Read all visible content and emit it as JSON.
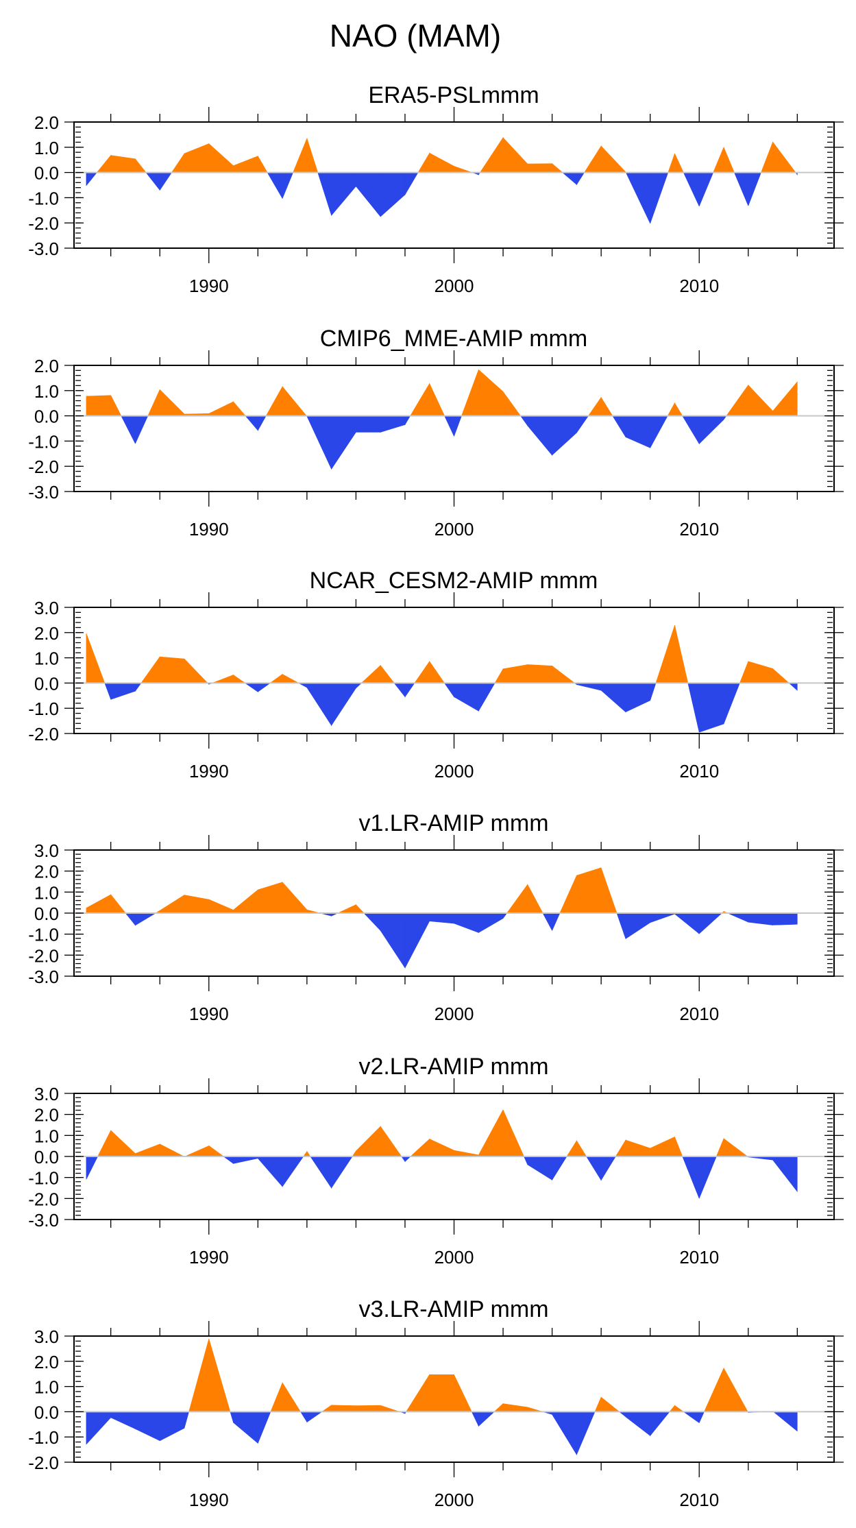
{
  "figure": {
    "title": "NAO (MAM)"
  },
  "colors": {
    "positive": "#ff8000",
    "negative": "#2a45e8",
    "zero_line": "#c8c8c8",
    "axis": "#000000"
  },
  "chart_data": [
    {
      "type": "area",
      "title": "ERA5-PSLmmm",
      "xlabel": "",
      "ylabel": "",
      "xlim": [
        1984.5,
        2015.5
      ],
      "ylim": [
        -3.0,
        2.0
      ],
      "yticks": [
        "2.0",
        "1.0",
        "0.0",
        "-1.0",
        "-2.0",
        "-3.0"
      ],
      "ytick_values": [
        2.0,
        1.0,
        0.0,
        -1.0,
        -2.0,
        -3.0
      ],
      "xticks": [
        "1990",
        "2000",
        "2010"
      ],
      "xtick_values": [
        1990,
        2000,
        2010
      ],
      "fill_above_zero": "positive",
      "fill_below_zero": "negative",
      "x": [
        1985,
        1986,
        1987,
        1988,
        1989,
        1990,
        1991,
        1992,
        1993,
        1994,
        1995,
        1996,
        1997,
        1998,
        1999,
        2000,
        2001,
        2002,
        2003,
        2004,
        2005,
        2006,
        2007,
        2008,
        2009,
        2010,
        2011,
        2012,
        2013,
        2014
      ],
      "values": [
        -0.52,
        0.68,
        0.54,
        -0.7,
        0.75,
        1.14,
        0.27,
        0.65,
        -1.03,
        1.35,
        -1.7,
        -0.55,
        -1.75,
        -0.88,
        0.77,
        0.25,
        -0.09,
        1.38,
        0.34,
        0.35,
        -0.48,
        1.05,
        0.02,
        -2.02,
        0.75,
        -1.34,
        1.0,
        -1.32,
        1.21,
        -0.09
      ]
    },
    {
      "type": "area",
      "title": "CMIP6_MME-AMIP  mmm",
      "xlabel": "",
      "ylabel": "",
      "xlim": [
        1984.5,
        2015.5
      ],
      "ylim": [
        -3.0,
        2.0
      ],
      "yticks": [
        "2.0",
        "1.0",
        "0.0",
        "-1.0",
        "-2.0",
        "-3.0"
      ],
      "ytick_values": [
        2.0,
        1.0,
        0.0,
        -1.0,
        -2.0,
        -3.0
      ],
      "xticks": [
        "1990",
        "2000",
        "2010"
      ],
      "xtick_values": [
        1990,
        2000,
        2010
      ],
      "fill_above_zero": "positive",
      "fill_below_zero": "negative",
      "x": [
        1985,
        1986,
        1987,
        1988,
        1989,
        1990,
        1991,
        1992,
        1993,
        1994,
        1995,
        1996,
        1997,
        1998,
        1999,
        2000,
        2001,
        2002,
        2003,
        2004,
        2005,
        2006,
        2007,
        2008,
        2009,
        2010,
        2011,
        2012,
        2013,
        2014
      ],
      "values": [
        0.78,
        0.81,
        -1.1,
        1.04,
        0.07,
        0.09,
        0.56,
        -0.58,
        1.16,
        -0.02,
        -2.11,
        -0.65,
        -0.65,
        -0.35,
        1.28,
        -0.81,
        1.83,
        0.96,
        -0.39,
        -1.56,
        -0.67,
        0.73,
        -0.84,
        -1.27,
        0.51,
        -1.11,
        -0.15,
        1.22,
        0.19,
        1.35
      ]
    },
    {
      "type": "area",
      "title": "NCAR_CESM2-AMIP  mmm",
      "xlabel": "",
      "ylabel": "",
      "xlim": [
        1984.5,
        2015.5
      ],
      "ylim": [
        -2.0,
        3.0
      ],
      "yticks": [
        "3.0",
        "2.0",
        "1.0",
        "0.0",
        "-1.0",
        "-2.0"
      ],
      "ytick_values": [
        3.0,
        2.0,
        1.0,
        0.0,
        -1.0,
        -2.0
      ],
      "xticks": [
        "1990",
        "2000",
        "2010"
      ],
      "xtick_values": [
        1990,
        2000,
        2010
      ],
      "fill_above_zero": "positive",
      "fill_below_zero": "negative",
      "x": [
        1985,
        1986,
        1987,
        1988,
        1989,
        1990,
        1991,
        1992,
        1993,
        1994,
        1995,
        1996,
        1997,
        1998,
        1999,
        2000,
        2001,
        2002,
        2003,
        2004,
        2005,
        2006,
        2007,
        2008,
        2009,
        2010,
        2011,
        2012,
        2013,
        2014
      ],
      "values": [
        1.97,
        -0.65,
        -0.32,
        1.04,
        0.96,
        -0.05,
        0.32,
        -0.35,
        0.35,
        -0.18,
        -1.68,
        -0.2,
        0.7,
        -0.55,
        0.86,
        -0.55,
        -1.11,
        0.56,
        0.73,
        0.68,
        -0.06,
        -0.29,
        -1.15,
        -0.69,
        2.29,
        -1.95,
        -1.62,
        0.86,
        0.57,
        -0.29
      ]
    },
    {
      "type": "area",
      "title": "v1.LR-AMIP  mmm",
      "xlabel": "",
      "ylabel": "",
      "xlim": [
        1984.5,
        2015.5
      ],
      "ylim": [
        -3.0,
        3.0
      ],
      "yticks": [
        "3.0",
        "2.0",
        "1.0",
        "0.0",
        "-1.0",
        "-2.0",
        "-3.0"
      ],
      "ytick_values": [
        3.0,
        2.0,
        1.0,
        0.0,
        -1.0,
        -2.0,
        -3.0
      ],
      "xticks": [
        "1990",
        "2000",
        "2010"
      ],
      "xtick_values": [
        1990,
        2000,
        2010
      ],
      "fill_above_zero": "positive",
      "fill_below_zero": "negative",
      "x": [
        1985,
        1986,
        1987,
        1988,
        1989,
        1990,
        1991,
        1992,
        1993,
        1994,
        1995,
        1996,
        1997,
        1998,
        1999,
        2000,
        2001,
        2002,
        2003,
        2004,
        2005,
        2006,
        2007,
        2008,
        2009,
        2010,
        2011,
        2012,
        2013,
        2014
      ],
      "values": [
        0.24,
        0.88,
        -0.58,
        0.12,
        0.86,
        0.65,
        0.15,
        1.11,
        1.47,
        0.16,
        -0.14,
        0.4,
        -0.83,
        -2.61,
        -0.38,
        -0.49,
        -0.93,
        -0.25,
        1.36,
        -0.83,
        1.79,
        2.16,
        -1.22,
        -0.45,
        -0.04,
        -0.98,
        0.08,
        -0.43,
        -0.57,
        -0.53
      ]
    },
    {
      "type": "area",
      "title": "v2.LR-AMIP  mmm",
      "xlabel": "",
      "ylabel": "",
      "xlim": [
        1984.5,
        2015.5
      ],
      "ylim": [
        -3.0,
        3.0
      ],
      "yticks": [
        "3.0",
        "2.0",
        "1.0",
        "0.0",
        "-1.0",
        "-2.0",
        "-3.0"
      ],
      "ytick_values": [
        3.0,
        2.0,
        1.0,
        0.0,
        -1.0,
        -2.0,
        -3.0
      ],
      "xticks": [
        "1990",
        "2000",
        "2010"
      ],
      "xtick_values": [
        1990,
        2000,
        2010
      ],
      "fill_above_zero": "positive",
      "fill_below_zero": "negative",
      "x": [
        1985,
        1986,
        1987,
        1988,
        1989,
        1990,
        1991,
        1992,
        1993,
        1994,
        1995,
        1996,
        1997,
        1998,
        1999,
        2000,
        2001,
        2002,
        2003,
        2004,
        2005,
        2006,
        2007,
        2008,
        2009,
        2010,
        2011,
        2012,
        2013,
        2014
      ],
      "values": [
        -1.09,
        1.24,
        0.14,
        0.59,
        -0.01,
        0.51,
        -0.34,
        -0.09,
        -1.43,
        0.24,
        -1.5,
        0.26,
        1.43,
        -0.24,
        0.83,
        0.29,
        0.07,
        2.22,
        -0.39,
        -1.12,
        0.75,
        -1.13,
        0.78,
        0.39,
        0.93,
        -2.0,
        0.85,
        -0.03,
        -0.17,
        -1.67
      ]
    },
    {
      "type": "area",
      "title": "v3.LR-AMIP  mmm",
      "xlabel": "",
      "ylabel": "",
      "xlim": [
        1984.5,
        2015.5
      ],
      "ylim": [
        -2.0,
        3.0
      ],
      "yticks": [
        "3.0",
        "2.0",
        "1.0",
        "0.0",
        "-1.0",
        "-2.0"
      ],
      "ytick_values": [
        3.0,
        2.0,
        1.0,
        0.0,
        -1.0,
        -2.0
      ],
      "xticks": [
        "1990",
        "2000",
        "2010"
      ],
      "xtick_values": [
        1990,
        2000,
        2010
      ],
      "fill_above_zero": "positive",
      "fill_below_zero": "negative",
      "x": [
        1985,
        1986,
        1987,
        1988,
        1989,
        1990,
        1991,
        1992,
        1993,
        1994,
        1995,
        1996,
        1997,
        1998,
        1999,
        2000,
        2001,
        2002,
        2003,
        2004,
        2005,
        2006,
        2007,
        2008,
        2009,
        2010,
        2011,
        2012,
        2013,
        2014
      ],
      "values": [
        -1.29,
        -0.23,
        -0.68,
        -1.15,
        -0.65,
        2.89,
        -0.43,
        -1.25,
        1.15,
        -0.41,
        0.26,
        0.24,
        0.25,
        -0.07,
        1.47,
        1.47,
        -0.57,
        0.32,
        0.18,
        -0.11,
        -1.7,
        0.58,
        -0.2,
        -0.95,
        0.25,
        -0.44,
        1.73,
        -0.03,
        0.02,
        -0.77
      ]
    }
  ]
}
